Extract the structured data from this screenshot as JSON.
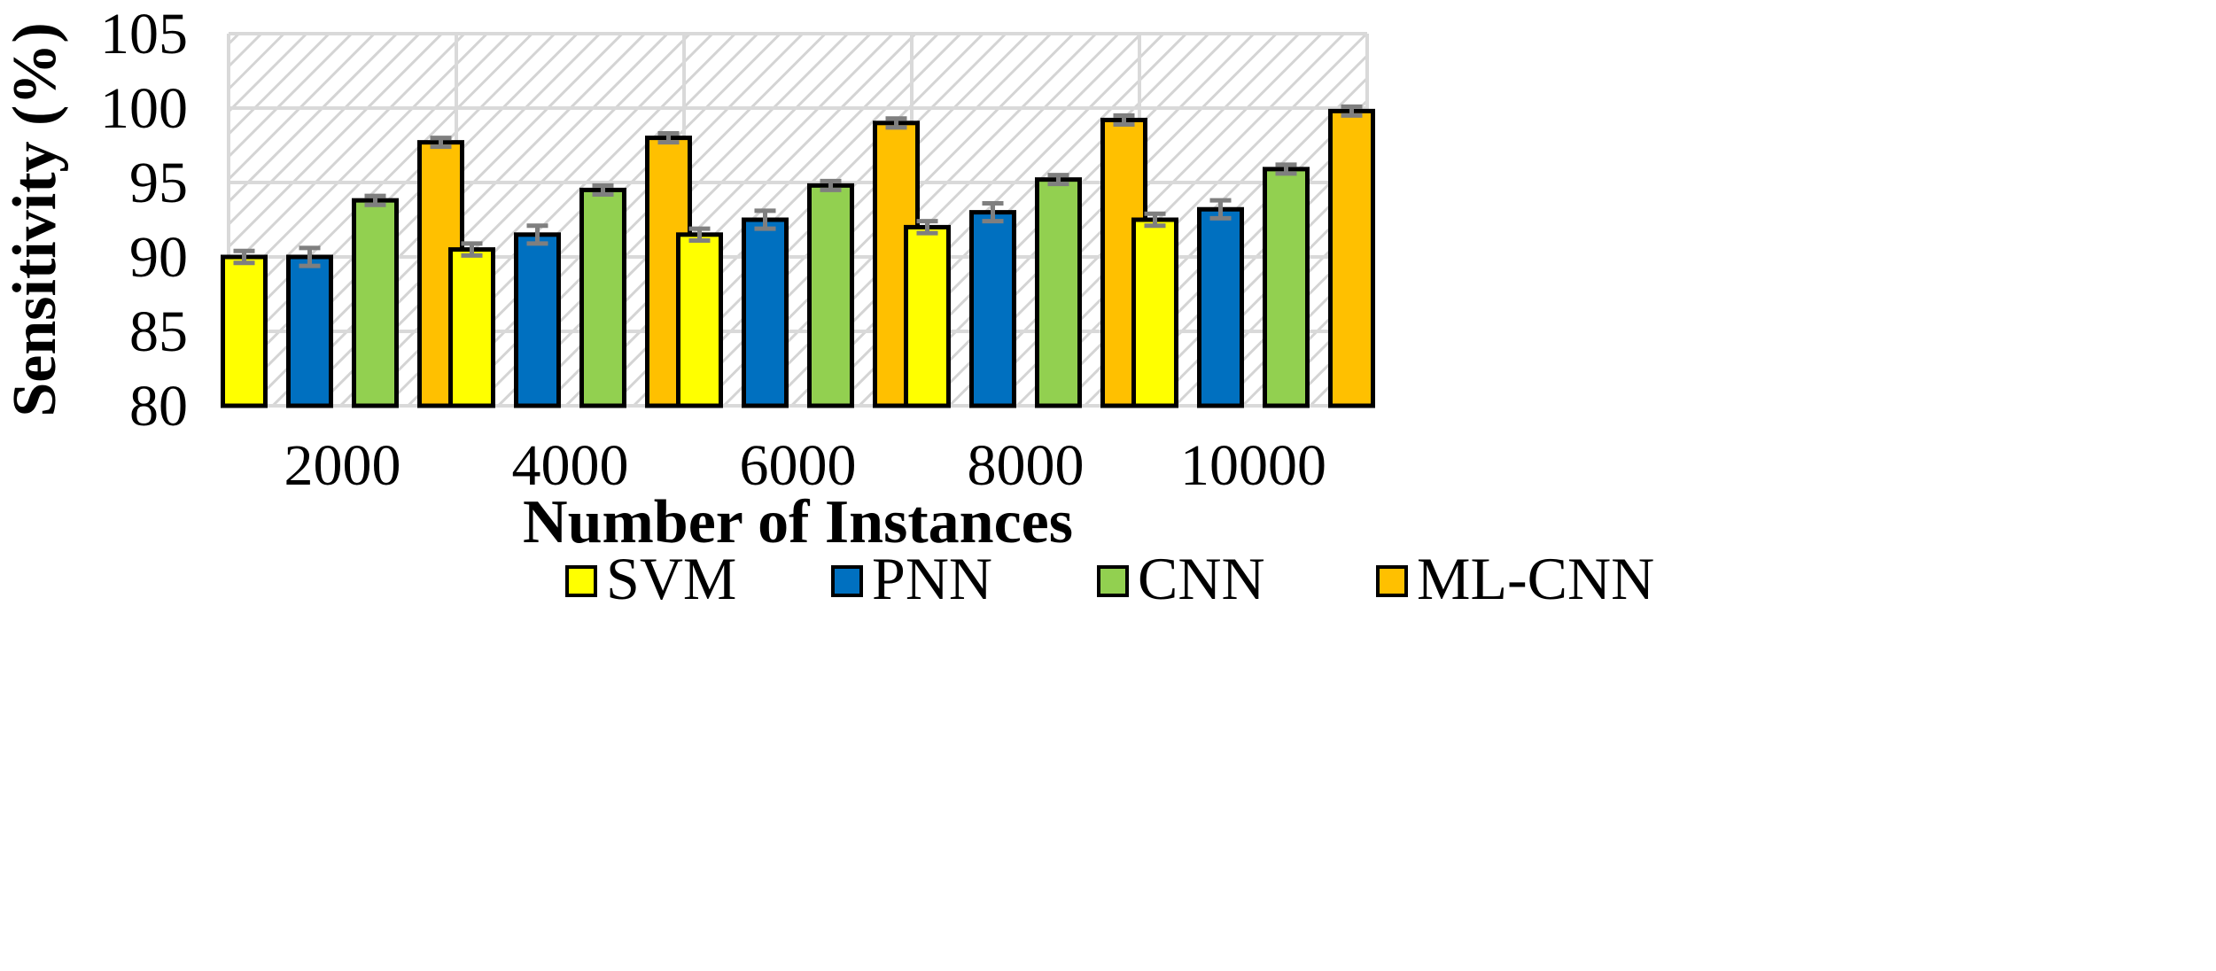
{
  "chart_data": {
    "type": "bar",
    "title": "",
    "xlabel": "Number of Instances",
    "ylabel": "Sensitivity (%)",
    "categories": [
      "2000",
      "4000",
      "6000",
      "8000",
      "10000"
    ],
    "ylim": [
      80,
      105
    ],
    "yticks": [
      "80",
      "85",
      "90",
      "95",
      "100",
      "105"
    ],
    "grid": true,
    "legend_position": "bottom",
    "error_bars": true,
    "series": [
      {
        "name": "SVM",
        "color": "#ffff00",
        "values": [
          90.0,
          90.5,
          91.5,
          92.0,
          92.5
        ],
        "errors": [
          0.4,
          0.4,
          0.4,
          0.4,
          0.4
        ]
      },
      {
        "name": "PNN",
        "color": "#0070c0",
        "values": [
          90.0,
          91.5,
          92.5,
          93.0,
          93.2
        ],
        "errors": [
          0.6,
          0.6,
          0.6,
          0.6,
          0.6
        ]
      },
      {
        "name": "CNN",
        "color": "#92d050",
        "values": [
          93.8,
          94.5,
          94.8,
          95.2,
          95.9
        ],
        "errors": [
          0.3,
          0.3,
          0.3,
          0.3,
          0.3
        ]
      },
      {
        "name": "ML-CNN",
        "color": "#ffc000",
        "values": [
          97.7,
          98.0,
          99.0,
          99.2,
          99.8
        ],
        "errors": [
          0.3,
          0.3,
          0.3,
          0.3,
          0.3
        ]
      }
    ]
  }
}
